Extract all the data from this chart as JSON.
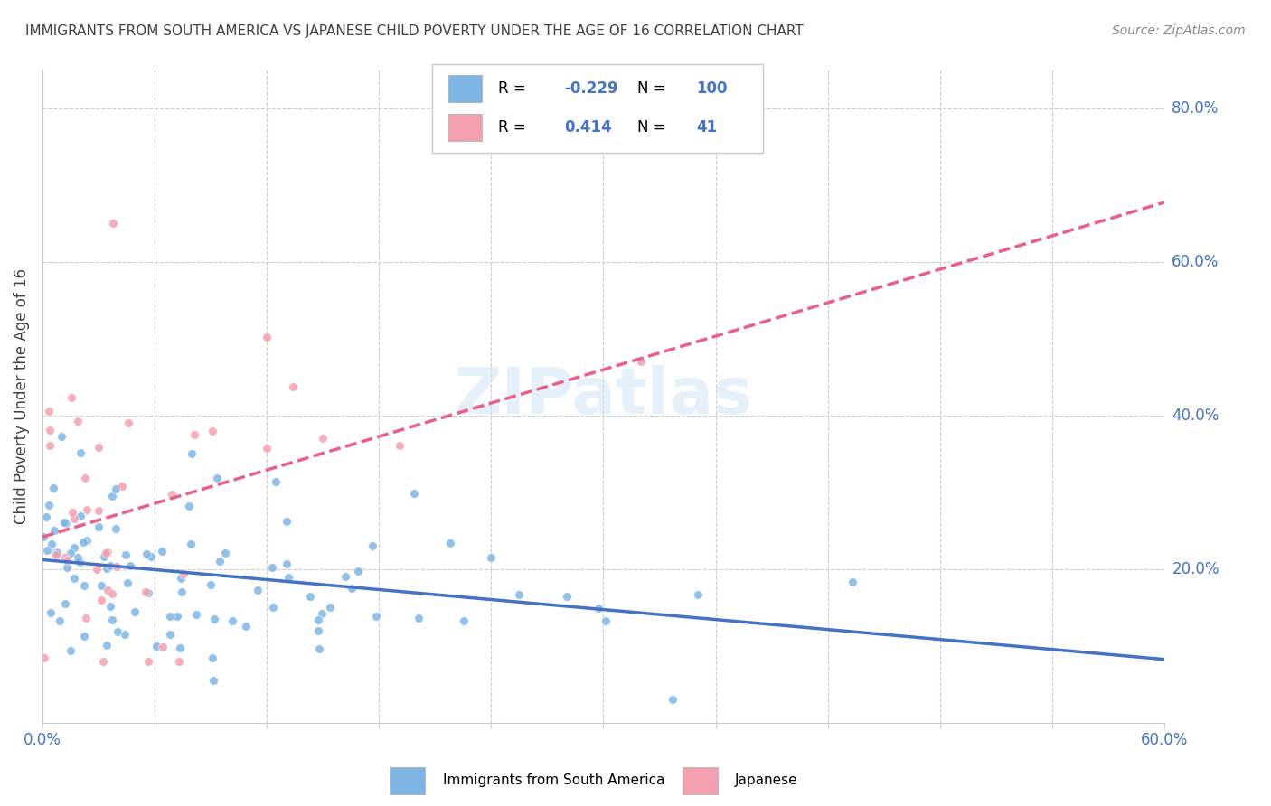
{
  "title": "IMMIGRANTS FROM SOUTH AMERICA VS JAPANESE CHILD POVERTY UNDER THE AGE OF 16 CORRELATION CHART",
  "source": "Source: ZipAtlas.com",
  "ylabel": "Child Poverty Under the Age of 16",
  "right_yticks": [
    "80.0%",
    "60.0%",
    "40.0%",
    "20.0%"
  ],
  "right_ytick_vals": [
    0.8,
    0.6,
    0.4,
    0.2
  ],
  "xlim": [
    0.0,
    0.6
  ],
  "ylim": [
    0.0,
    0.85
  ],
  "legend_R_blue": "-0.229",
  "legend_N_blue": "100",
  "legend_R_pink": "0.414",
  "legend_N_pink": "41",
  "blue_color": "#7EB5E5",
  "pink_color": "#F4A0B0",
  "blue_line_color": "#4472C4",
  "pink_line_color": "#E8608A",
  "title_color": "#404040",
  "axis_label_color": "#4472C4"
}
